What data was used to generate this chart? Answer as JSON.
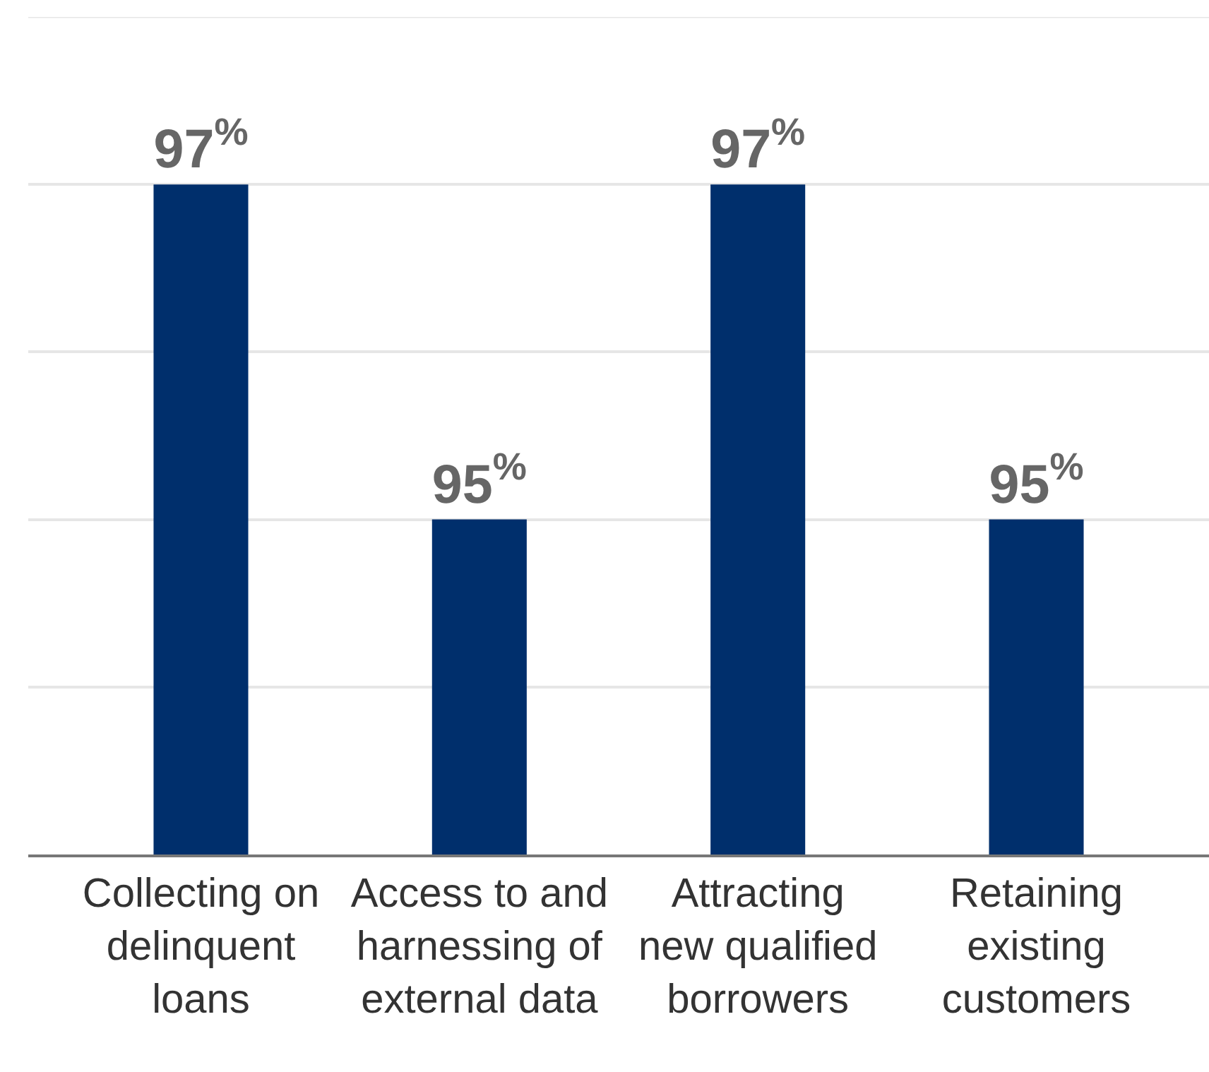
{
  "chart_data": {
    "type": "bar",
    "categories": [
      "Collecting on\ndelinquent\nloans",
      "Access to and\nharnessing of\nexternal data",
      "Attracting\nnew qualified\nborrowers",
      "Retaining\nexisting\ncustomers"
    ],
    "values": [
      97,
      95,
      97,
      95
    ],
    "value_labels": [
      "97$^{%}$",
      "95$^{%}$",
      "97$^{%}$",
      "95$^{%}$"
    ],
    "color": "#002f6c",
    "ylim": [
      93,
      98
    ],
    "yticks": [
      {
        "value": 93,
        "label": null
      },
      {
        "value": 94,
        "label": null
      },
      {
        "value": 95,
        "label": null
      },
      {
        "value": 96,
        "label": null
      },
      {
        "value": 97,
        "label": null
      },
      {
        "value": 98,
        "label": null
      }
    ],
    "grid": "y",
    "tick_labels": "x"
  }
}
